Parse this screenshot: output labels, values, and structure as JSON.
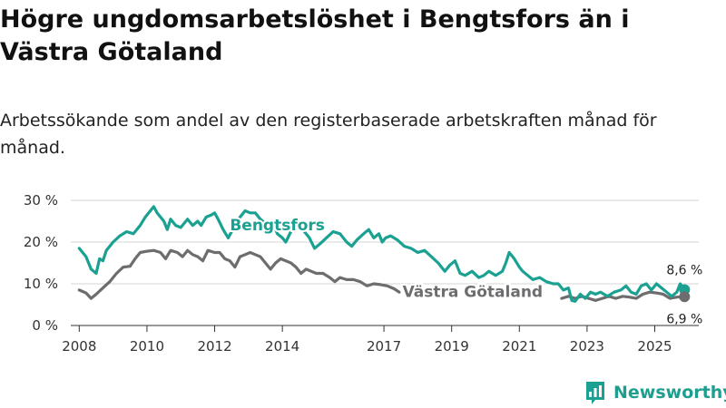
{
  "title": "Högre ungdomsarbetslöshet i Bengtsfors än i Västra Götaland",
  "subtitle": "Arbetssökande som andel av den registerbaserade arbetskraften månad för månad.",
  "brand": "Newsworthy",
  "colors": {
    "bengtsfors": "#1aa192",
    "vg": "#6d6d70",
    "grid": "#d6d6d6",
    "axis": "#333333"
  },
  "chart_data": {
    "type": "line",
    "title": "Högre ungdomsarbetslöshet i Bengtsfors än i Västra Götaland",
    "xlabel": "",
    "ylabel": "",
    "ylim": [
      0,
      30
    ],
    "xlim": [
      2007.75,
      2026.3
    ],
    "y_ticks": [
      0,
      10,
      20,
      30
    ],
    "y_tick_labels": [
      "0 %",
      "10 %",
      "20 %",
      "30 %"
    ],
    "x_ticks": [
      2008,
      2010,
      2012,
      2014,
      2017,
      2019,
      2021,
      2023,
      2025
    ],
    "x_tick_labels": [
      "2008",
      "2010",
      "2012",
      "2014",
      "2017",
      "2019",
      "2021",
      "2023",
      "2025"
    ],
    "grid": true,
    "series": [
      {
        "name": "Bengtsfors",
        "label": "Bengtsfors",
        "end_label": "8,6 %",
        "points": [
          [
            2008.0,
            18.5
          ],
          [
            2008.2,
            16.5
          ],
          [
            2008.35,
            13.5
          ],
          [
            2008.5,
            12.5
          ],
          [
            2008.6,
            16
          ],
          [
            2008.7,
            15.5
          ],
          [
            2008.8,
            18
          ],
          [
            2009.0,
            20
          ],
          [
            2009.2,
            21.5
          ],
          [
            2009.4,
            22.5
          ],
          [
            2009.6,
            22
          ],
          [
            2009.8,
            24
          ],
          [
            2009.95,
            26
          ],
          [
            2010.1,
            27.5
          ],
          [
            2010.2,
            28.5
          ],
          [
            2010.3,
            27
          ],
          [
            2010.5,
            25
          ],
          [
            2010.6,
            23
          ],
          [
            2010.7,
            25.5
          ],
          [
            2010.85,
            24
          ],
          [
            2011.0,
            23.5
          ],
          [
            2011.2,
            25.5
          ],
          [
            2011.35,
            24
          ],
          [
            2011.5,
            25
          ],
          [
            2011.6,
            24
          ],
          [
            2011.75,
            26
          ],
          [
            2011.9,
            26.5
          ],
          [
            2012.0,
            27
          ],
          [
            2012.1,
            25.5
          ],
          [
            2012.25,
            23
          ],
          [
            2012.4,
            21
          ],
          [
            2012.5,
            22.5
          ],
          [
            2012.6,
            24
          ],
          [
            2012.75,
            26
          ],
          [
            2012.9,
            27.5
          ],
          [
            2013.05,
            27
          ],
          [
            2013.2,
            27
          ],
          [
            2013.35,
            25.5
          ],
          [
            2013.5,
            24.5
          ],
          [
            2013.7,
            25
          ],
          [
            2013.85,
            22
          ],
          [
            2014.0,
            21
          ],
          [
            2014.1,
            20
          ],
          [
            2014.25,
            22.5
          ],
          [
            2014.4,
            24
          ],
          [
            2014.6,
            23
          ],
          [
            2014.8,
            21
          ],
          [
            2014.95,
            18.5
          ],
          [
            2015.1,
            19.5
          ],
          [
            2015.3,
            21
          ],
          [
            2015.5,
            22.5
          ],
          [
            2015.7,
            22
          ],
          [
            2015.9,
            20
          ],
          [
            2016.05,
            19
          ],
          [
            2016.2,
            20.5
          ],
          [
            2016.4,
            22
          ],
          [
            2016.55,
            23
          ],
          [
            2016.7,
            21
          ],
          [
            2016.85,
            22
          ],
          [
            2016.95,
            20
          ],
          [
            2017.05,
            21
          ],
          [
            2017.2,
            21.5
          ],
          [
            2017.4,
            20.5
          ],
          [
            2017.6,
            19
          ],
          [
            2017.8,
            18.5
          ],
          [
            2018.0,
            17.5
          ],
          [
            2018.2,
            18
          ],
          [
            2018.4,
            16.5
          ],
          [
            2018.6,
            15
          ],
          [
            2018.8,
            13
          ],
          [
            2018.95,
            14.5
          ],
          [
            2019.1,
            15.5
          ],
          [
            2019.25,
            12.5
          ],
          [
            2019.4,
            12
          ],
          [
            2019.6,
            13
          ],
          [
            2019.8,
            11.5
          ],
          [
            2019.95,
            12
          ],
          [
            2020.1,
            13
          ],
          [
            2020.3,
            12
          ],
          [
            2020.5,
            13
          ],
          [
            2020.6,
            15
          ],
          [
            2020.7,
            17.5
          ],
          [
            2020.85,
            16
          ],
          [
            2021.0,
            14
          ],
          [
            2021.1,
            13
          ],
          [
            2021.25,
            12
          ],
          [
            2021.4,
            11
          ],
          [
            2021.6,
            11.5
          ],
          [
            2021.8,
            10.5
          ],
          [
            2022.0,
            10
          ],
          [
            2022.15,
            10
          ],
          [
            2022.3,
            8.5
          ],
          [
            2022.45,
            9
          ],
          [
            2022.55,
            6
          ],
          [
            2022.65,
            5.8
          ],
          [
            2022.8,
            7.5
          ],
          [
            2022.95,
            6.5
          ],
          [
            2023.1,
            8
          ],
          [
            2023.25,
            7.5
          ],
          [
            2023.4,
            8
          ],
          [
            2023.6,
            7
          ],
          [
            2023.8,
            8
          ],
          [
            2024.0,
            8.5
          ],
          [
            2024.15,
            9.5
          ],
          [
            2024.3,
            8
          ],
          [
            2024.45,
            7.5
          ],
          [
            2024.6,
            9.5
          ],
          [
            2024.75,
            10
          ],
          [
            2024.9,
            8.5
          ],
          [
            2025.05,
            10
          ],
          [
            2025.2,
            9
          ],
          [
            2025.35,
            8
          ],
          [
            2025.5,
            7
          ],
          [
            2025.65,
            8
          ],
          [
            2025.75,
            10
          ],
          [
            2025.88,
            8.6
          ]
        ]
      },
      {
        "name": "Västra Götaland",
        "label": "Västra Götaland",
        "end_label": "6,9 %",
        "points": [
          [
            2008.0,
            8.5
          ],
          [
            2008.2,
            7.8
          ],
          [
            2008.35,
            6.5
          ],
          [
            2008.5,
            7.5
          ],
          [
            2008.7,
            9
          ],
          [
            2008.9,
            10.5
          ],
          [
            2009.1,
            12.5
          ],
          [
            2009.3,
            14
          ],
          [
            2009.5,
            14.2
          ],
          [
            2009.65,
            16
          ],
          [
            2009.8,
            17.5
          ],
          [
            2010.0,
            17.8
          ],
          [
            2010.2,
            18
          ],
          [
            2010.4,
            17.5
          ],
          [
            2010.55,
            16
          ],
          [
            2010.7,
            18
          ],
          [
            2010.9,
            17.5
          ],
          [
            2011.05,
            16.5
          ],
          [
            2011.2,
            18
          ],
          [
            2011.35,
            17
          ],
          [
            2011.5,
            16.5
          ],
          [
            2011.65,
            15.5
          ],
          [
            2011.8,
            18
          ],
          [
            2012.0,
            17.5
          ],
          [
            2012.15,
            17.5
          ],
          [
            2012.3,
            16
          ],
          [
            2012.45,
            15.5
          ],
          [
            2012.6,
            14
          ],
          [
            2012.75,
            16.5
          ],
          [
            2012.9,
            17
          ],
          [
            2013.05,
            17.5
          ],
          [
            2013.2,
            17
          ],
          [
            2013.35,
            16.5
          ],
          [
            2013.5,
            15
          ],
          [
            2013.65,
            13.5
          ],
          [
            2013.8,
            15
          ],
          [
            2013.95,
            16
          ],
          [
            2014.1,
            15.5
          ],
          [
            2014.25,
            15
          ],
          [
            2014.4,
            14
          ],
          [
            2014.55,
            12.5
          ],
          [
            2014.7,
            13.5
          ],
          [
            2014.85,
            13
          ],
          [
            2015.0,
            12.5
          ],
          [
            2015.2,
            12.5
          ],
          [
            2015.4,
            11.5
          ],
          [
            2015.55,
            10.5
          ],
          [
            2015.7,
            11.5
          ],
          [
            2015.9,
            11
          ],
          [
            2016.1,
            11
          ],
          [
            2016.3,
            10.5
          ],
          [
            2016.5,
            9.5
          ],
          [
            2016.7,
            10
          ],
          [
            2016.9,
            9.8
          ],
          [
            2017.1,
            9.5
          ],
          [
            2017.3,
            8.8
          ],
          [
            2017.45,
            8
          ]
        ]
      },
      {
        "name": "Västra Götaland (forts.)",
        "points": [
          [
            2022.25,
            6.5
          ],
          [
            2022.45,
            7
          ],
          [
            2022.65,
            6.5
          ],
          [
            2022.85,
            7
          ],
          [
            2023.05,
            6.5
          ],
          [
            2023.25,
            6
          ],
          [
            2023.45,
            6.5
          ],
          [
            2023.65,
            7
          ],
          [
            2023.85,
            6.5
          ],
          [
            2024.05,
            7
          ],
          [
            2024.25,
            6.8
          ],
          [
            2024.45,
            6.5
          ],
          [
            2024.65,
            7.5
          ],
          [
            2024.85,
            8
          ],
          [
            2025.05,
            7.8
          ],
          [
            2025.25,
            7.5
          ],
          [
            2025.45,
            6.5
          ],
          [
            2025.65,
            6.8
          ],
          [
            2025.88,
            6.9
          ]
        ]
      }
    ]
  }
}
